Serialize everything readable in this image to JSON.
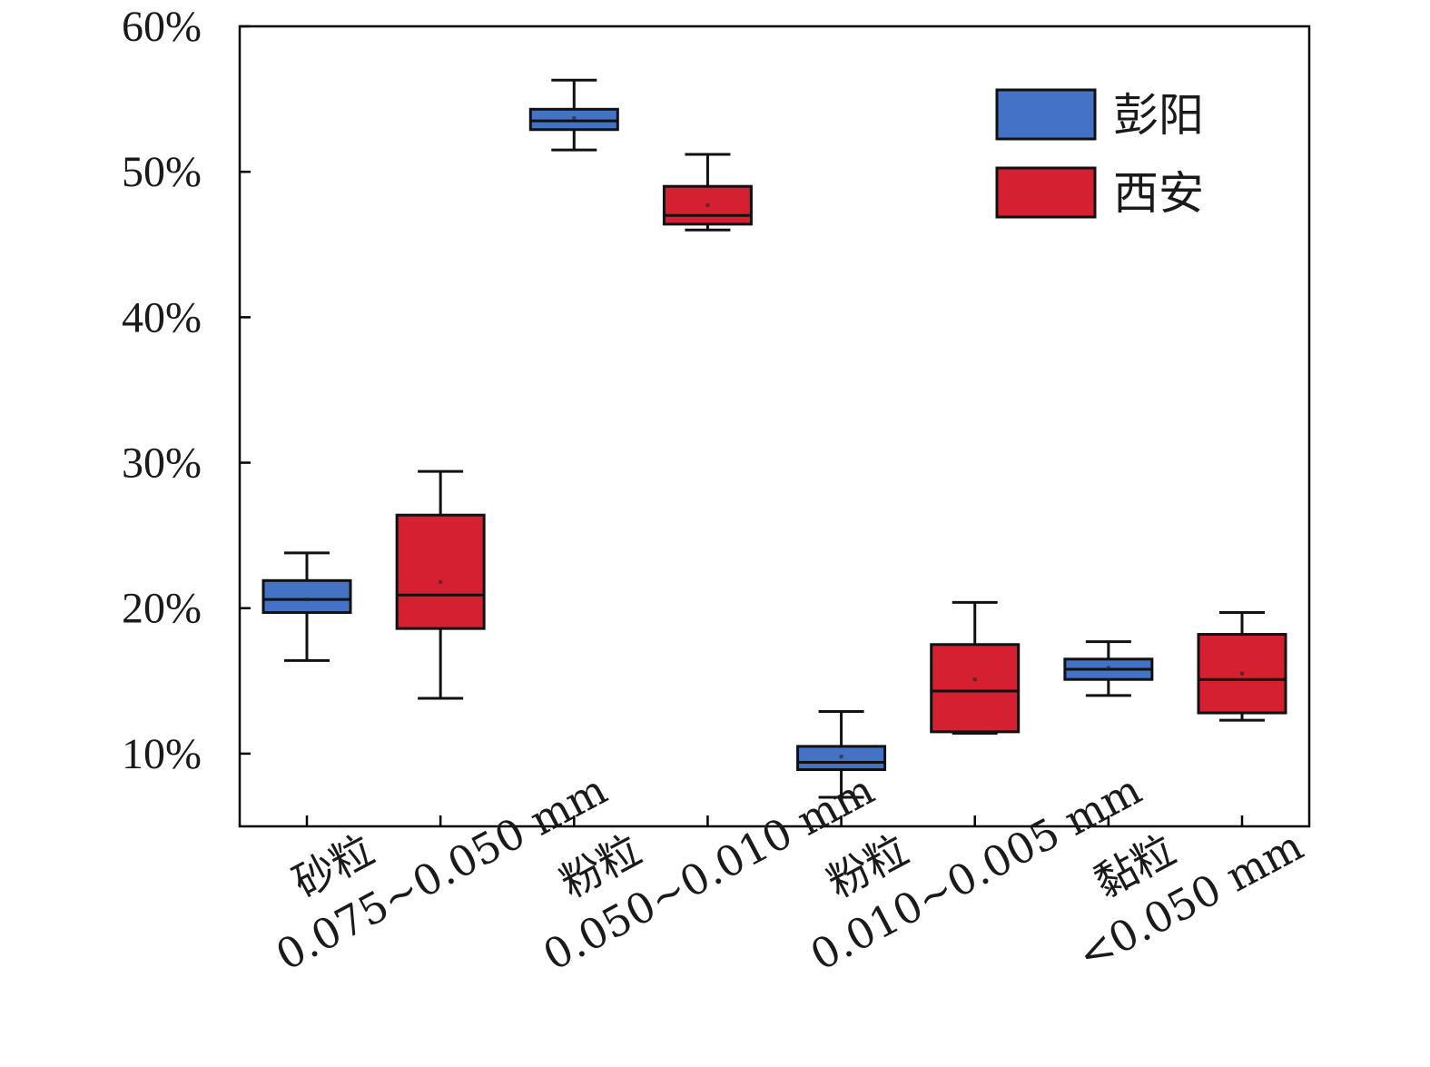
{
  "chart_data": {
    "type": "box",
    "y_axis": {
      "ylim": [
        5,
        60
      ],
      "ticks": [
        10,
        20,
        30,
        40,
        50,
        60
      ],
      "tick_labels": [
        "10%",
        "20%",
        "30%",
        "40%",
        "50%",
        "60%"
      ]
    },
    "categories": [
      {
        "name": "砂粒",
        "range": "0.075~0.050 mm"
      },
      {
        "name": "粉粒",
        "range": "0.050~0.010 mm"
      },
      {
        "name": "粉粒",
        "range": "0.010~0.005 mm"
      },
      {
        "name": "黏粒",
        "range": "<0.050 mm"
      }
    ],
    "legend_position": "top-right",
    "grid": false,
    "series": [
      {
        "name": "彭阳",
        "color": "#4472c4",
        "boxes": [
          {
            "whisker_low": 16.4,
            "q1": 19.7,
            "median": 20.6,
            "q3": 21.9,
            "whisker_high": 23.8,
            "mean": 20.6
          },
          {
            "whisker_low": 51.5,
            "q1": 52.9,
            "median": 53.5,
            "q3": 54.3,
            "whisker_high": 56.3,
            "mean": 53.7
          },
          {
            "whisker_low": 7.0,
            "q1": 8.9,
            "median": 9.4,
            "q3": 10.5,
            "whisker_high": 12.9,
            "mean": 9.8
          },
          {
            "whisker_low": 14.0,
            "q1": 15.1,
            "median": 15.8,
            "q3": 16.5,
            "whisker_high": 17.7,
            "mean": 15.9
          }
        ]
      },
      {
        "name": "西安",
        "color": "#d42030",
        "boxes": [
          {
            "whisker_low": 13.8,
            "q1": 18.6,
            "median": 20.9,
            "q3": 26.4,
            "whisker_high": 29.4,
            "mean": 21.8
          },
          {
            "whisker_low": 46.0,
            "q1": 46.4,
            "median": 47.0,
            "q3": 49.0,
            "whisker_high": 51.2,
            "mean": 47.7
          },
          {
            "whisker_low": 11.4,
            "q1": 11.5,
            "median": 14.3,
            "q3": 17.5,
            "whisker_high": 20.4,
            "mean": 15.1
          },
          {
            "whisker_low": 12.3,
            "q1": 12.8,
            "median": 15.1,
            "q3": 18.2,
            "whisker_high": 19.7,
            "mean": 15.5
          }
        ]
      }
    ]
  }
}
